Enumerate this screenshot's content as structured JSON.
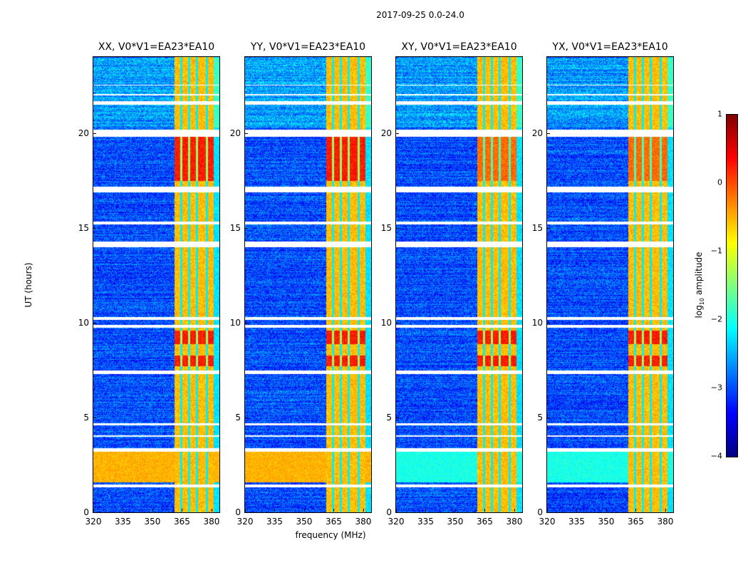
{
  "chart_data": {
    "type": "heatmap",
    "suptitle": "2017-09-25 0.0-24.0",
    "xlabel": "frequency (MHz)",
    "ylabel": "UT (hours)",
    "xlim": [
      320,
      384
    ],
    "ylim": [
      0,
      24
    ],
    "xticks": [
      "320",
      "335",
      "350",
      "365",
      "380"
    ],
    "yticks": [
      "0",
      "5",
      "10",
      "15",
      "20"
    ],
    "panels": [
      {
        "title": "XX, V0*V1=EA23*EA10",
        "low_band_level": -0.5
      },
      {
        "title": "YY, V0*V1=EA23*EA10",
        "low_band_level": -0.5
      },
      {
        "title": "XY, V0*V1=EA23*EA10",
        "low_band_level": -2.0
      },
      {
        "title": "YX, V0*V1=EA23*EA10",
        "low_band_level": -2.0
      }
    ],
    "background_level": -3.0,
    "rfi_band_mhz": [
      361,
      381
    ],
    "rfi_band_level": -0.8,
    "strong_rfi_hours": [
      [
        7.7,
        8.3
      ],
      [
        8.9,
        9.6
      ],
      [
        17.5,
        19.8
      ]
    ],
    "elevated_hours": [
      1.6,
      3.2
    ],
    "flagged_hours": [
      [
        1.35,
        1.5
      ],
      [
        3.2,
        3.4
      ],
      [
        4.0,
        4.08
      ],
      [
        4.6,
        4.7
      ],
      [
        7.3,
        7.5
      ],
      [
        9.75,
        9.9
      ],
      [
        10.15,
        10.3
      ],
      [
        14.0,
        14.3
      ],
      [
        15.2,
        15.35
      ],
      [
        16.9,
        17.2
      ],
      [
        19.8,
        20.2
      ],
      [
        21.5,
        21.7
      ],
      [
        22.0,
        22.08
      ],
      [
        22.5,
        22.56
      ]
    ],
    "colorbar": {
      "label_main": "log",
      "label_sub": "10",
      "label_rest": " amplitude",
      "ticks": [
        "1",
        "0",
        "−1",
        "−2",
        "−3",
        "−4"
      ],
      "range": [
        -4,
        1
      ],
      "colormap": "jet"
    }
  }
}
